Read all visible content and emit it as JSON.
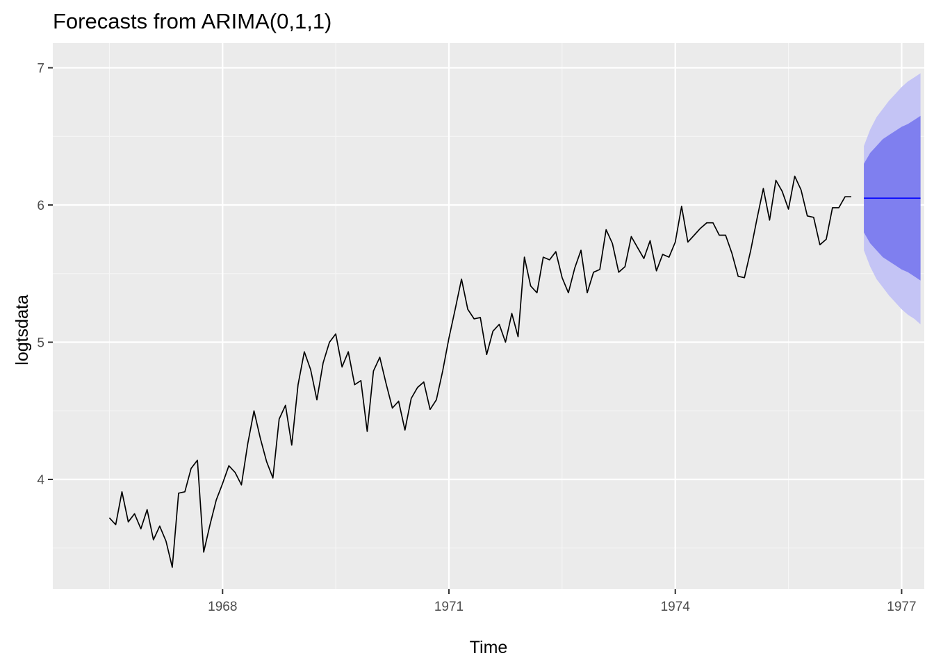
{
  "chart_data": {
    "type": "line",
    "title": "Forecasts from ARIMA(0,1,1)",
    "xlabel": "Time",
    "ylabel": "logtsdata",
    "xlim": [
      1965.75,
      1977.3
    ],
    "ylim": [
      3.2,
      7.18
    ],
    "x_major_ticks": [
      1968,
      1971,
      1974,
      1977
    ],
    "x_minor_ticks": [
      1966.5,
      1969.5,
      1972.5,
      1975.5
    ],
    "y_major_ticks": [
      4,
      5,
      6,
      7
    ],
    "y_minor_ticks": [
      3.5,
      4.5,
      5.5,
      6.5
    ],
    "x_tick_labels": [
      "1968",
      "1971",
      "1974",
      "1977"
    ],
    "y_tick_labels": [
      "4",
      "5",
      "6",
      "7"
    ],
    "grid": true,
    "legend": "none",
    "colors": {
      "panel_background": "#EBEBEB",
      "grid_major": "#FFFFFF",
      "grid_minor": "#F6F6F6",
      "series_line": "#000000",
      "forecast_line": "#0000FF",
      "interval_95": "#C4C4F5",
      "interval_80": "#7F7FEF",
      "tick_mark": "#333333"
    },
    "series": [
      {
        "start": 1966.5,
        "frequency": 12,
        "values": [
          3.72,
          3.67,
          3.91,
          3.69,
          3.75,
          3.64,
          3.78,
          3.56,
          3.66,
          3.55,
          3.36,
          3.9,
          3.91,
          4.08,
          4.14,
          3.47,
          3.67,
          3.85,
          3.97,
          4.1,
          4.05,
          3.96,
          4.26,
          4.5,
          4.3,
          4.13,
          4.01,
          4.44,
          4.54,
          4.25,
          4.69,
          4.93,
          4.8,
          4.58,
          4.85,
          5.0,
          5.06,
          4.82,
          4.93,
          4.69,
          4.72,
          4.35,
          4.79,
          4.89,
          4.7,
          4.52,
          4.57,
          4.36,
          4.59,
          4.67,
          4.71,
          4.51,
          4.58,
          4.79,
          5.03,
          5.24,
          5.46,
          5.24,
          5.17,
          5.18,
          4.91,
          5.08,
          5.13,
          5.0,
          5.21,
          5.04,
          5.62,
          5.41,
          5.36,
          5.62,
          5.6,
          5.66,
          5.47,
          5.36,
          5.54,
          5.67,
          5.36,
          5.51,
          5.53,
          5.82,
          5.72,
          5.51,
          5.55,
          5.77,
          5.69,
          5.61,
          5.74,
          5.52,
          5.64,
          5.62,
          5.73,
          5.99,
          5.73,
          5.78,
          5.83,
          5.87,
          5.87,
          5.78,
          5.78,
          5.65,
          5.48,
          5.47,
          5.67,
          5.9,
          6.12,
          5.89,
          6.18,
          6.1,
          5.97,
          6.21,
          6.11,
          5.92,
          5.91,
          5.71,
          5.75,
          5.98,
          5.98,
          6.06,
          6.06
        ]
      }
    ],
    "forecast": {
      "x": [
        1976.5,
        1976.583,
        1976.667,
        1976.75,
        1976.833,
        1976.917,
        1977.0,
        1977.083,
        1977.167,
        1977.25
      ],
      "mean": [
        6.05,
        6.05,
        6.05,
        6.05,
        6.05,
        6.05,
        6.05,
        6.05,
        6.05,
        6.05
      ],
      "lower_80": [
        5.8,
        5.72,
        5.67,
        5.62,
        5.59,
        5.56,
        5.53,
        5.51,
        5.48,
        5.45
      ],
      "upper_80": [
        6.3,
        6.38,
        6.43,
        6.48,
        6.51,
        6.54,
        6.57,
        6.59,
        6.62,
        6.65
      ],
      "lower_95": [
        5.67,
        5.55,
        5.46,
        5.4,
        5.34,
        5.29,
        5.24,
        5.2,
        5.17,
        5.13
      ],
      "upper_95": [
        6.43,
        6.55,
        6.64,
        6.7,
        6.76,
        6.81,
        6.86,
        6.9,
        6.93,
        6.96
      ]
    }
  }
}
